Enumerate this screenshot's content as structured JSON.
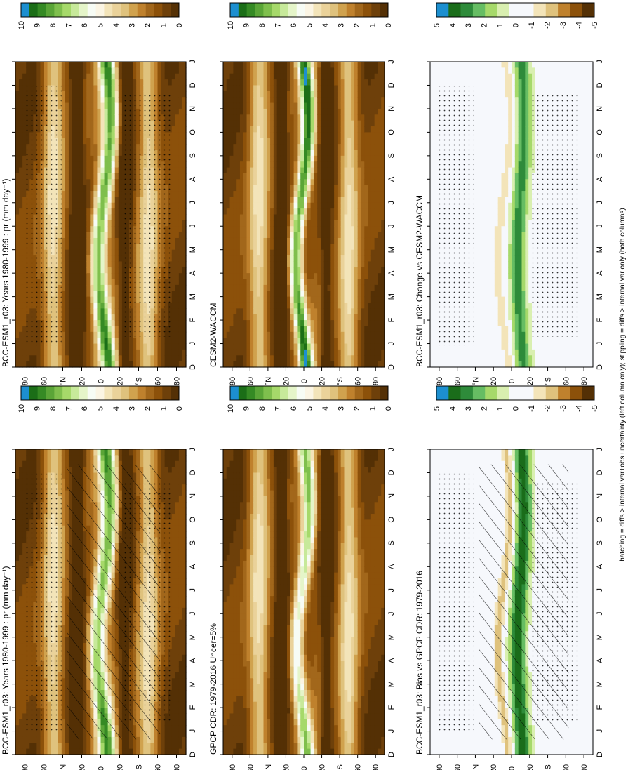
{
  "figure": {
    "footer_note": "hatching = diffs > internal var+obs uncertainty (left column only); stippling = diffs > internal var only (both columns)"
  },
  "chart_data": [
    {
      "id": "p1",
      "type": "heatmap",
      "kind": "abs",
      "title": "BCC-ESM1_r03: Years 1980-1999 : pr (mm day⁻¹)",
      "x_ticks": [
        "D",
        "J",
        "F",
        "M",
        "A",
        "M",
        "J",
        "J",
        "A",
        "S",
        "O",
        "N",
        "D",
        "J"
      ],
      "y_ticks": [
        "80",
        "60",
        "°N",
        "20",
        "0",
        "20",
        "°S",
        "60",
        "80"
      ],
      "colorbar_ticks": [
        "10",
        "9",
        "8",
        "7",
        "6",
        "5",
        "4",
        "3",
        "2",
        "1",
        "0"
      ],
      "hatched": true,
      "stippled": true
    },
    {
      "id": "p2",
      "type": "heatmap",
      "kind": "abs",
      "title": "BCC-ESM1_r03: Years 1980-1999 : pr (mm day⁻¹)",
      "x_ticks": [
        "D",
        "J",
        "F",
        "M",
        "A",
        "M",
        "J",
        "J",
        "A",
        "S",
        "O",
        "N",
        "D",
        "J"
      ],
      "y_ticks": [
        "80",
        "60",
        "°N",
        "20",
        "0",
        "20",
        "°S",
        "60",
        "80"
      ],
      "colorbar_ticks": [
        "10",
        "9",
        "8",
        "7",
        "6",
        "5",
        "4",
        "3",
        "2",
        "1",
        "0"
      ],
      "hatched": false,
      "stippled": true
    },
    {
      "id": "p3",
      "type": "heatmap",
      "kind": "abs",
      "title": "GPCP CDR: 1979-2016 Uncer=5%",
      "x_ticks": [
        "D",
        "J",
        "F",
        "M",
        "A",
        "M",
        "J",
        "J",
        "A",
        "S",
        "O",
        "N",
        "D",
        "J"
      ],
      "y_ticks": [
        "80",
        "60",
        "°N",
        "20",
        "0",
        "20",
        "°S",
        "60",
        "80"
      ],
      "colorbar_ticks": [
        "10",
        "9",
        "8",
        "7",
        "6",
        "5",
        "4",
        "3",
        "2",
        "1",
        "0"
      ],
      "hatched": false,
      "stippled": false
    },
    {
      "id": "p4",
      "type": "heatmap",
      "kind": "abs",
      "title": "CESM2-WACCM",
      "x_ticks": [
        "D",
        "J",
        "F",
        "M",
        "A",
        "M",
        "J",
        "J",
        "A",
        "S",
        "O",
        "N",
        "D",
        "J"
      ],
      "y_ticks": [
        "80",
        "60",
        "°N",
        "20",
        "0",
        "20",
        "°S",
        "60",
        "80"
      ],
      "colorbar_ticks": [
        "10",
        "9",
        "8",
        "7",
        "6",
        "5",
        "4",
        "3",
        "2",
        "1",
        "0"
      ],
      "hatched": false,
      "stippled": false
    },
    {
      "id": "p5",
      "type": "heatmap",
      "kind": "diff",
      "title": "BCC-ESM1_r03: Bias vs GPCP CDR: 1979-2016",
      "x_ticks": [
        "D",
        "J",
        "F",
        "M",
        "A",
        "M",
        "J",
        "J",
        "A",
        "S",
        "O",
        "N",
        "D",
        "J"
      ],
      "y_ticks": [
        "80",
        "60",
        "°N",
        "20",
        "0",
        "20",
        "°S",
        "60",
        "80"
      ],
      "colorbar_ticks": [
        "5",
        "4",
        "3",
        "2",
        "1",
        "0",
        "-1",
        "-2",
        "-3",
        "-4",
        "-5"
      ],
      "hatched": true,
      "stippled": true
    },
    {
      "id": "p6",
      "type": "heatmap",
      "kind": "diff",
      "title": "BCC-ESM1_r03: Change vs CESM2-WACCM",
      "x_ticks": [
        "D",
        "J",
        "F",
        "M",
        "A",
        "M",
        "J",
        "J",
        "A",
        "S",
        "O",
        "N",
        "D",
        "J"
      ],
      "y_ticks": [
        "80",
        "60",
        "°N",
        "20",
        "0",
        "20",
        "°S",
        "60",
        "80"
      ],
      "colorbar_ticks": [
        "5",
        "4",
        "3",
        "2",
        "1",
        "0",
        "-1",
        "-2",
        "-3",
        "-4",
        "-5"
      ],
      "hatched": false,
      "stippled": true
    }
  ]
}
